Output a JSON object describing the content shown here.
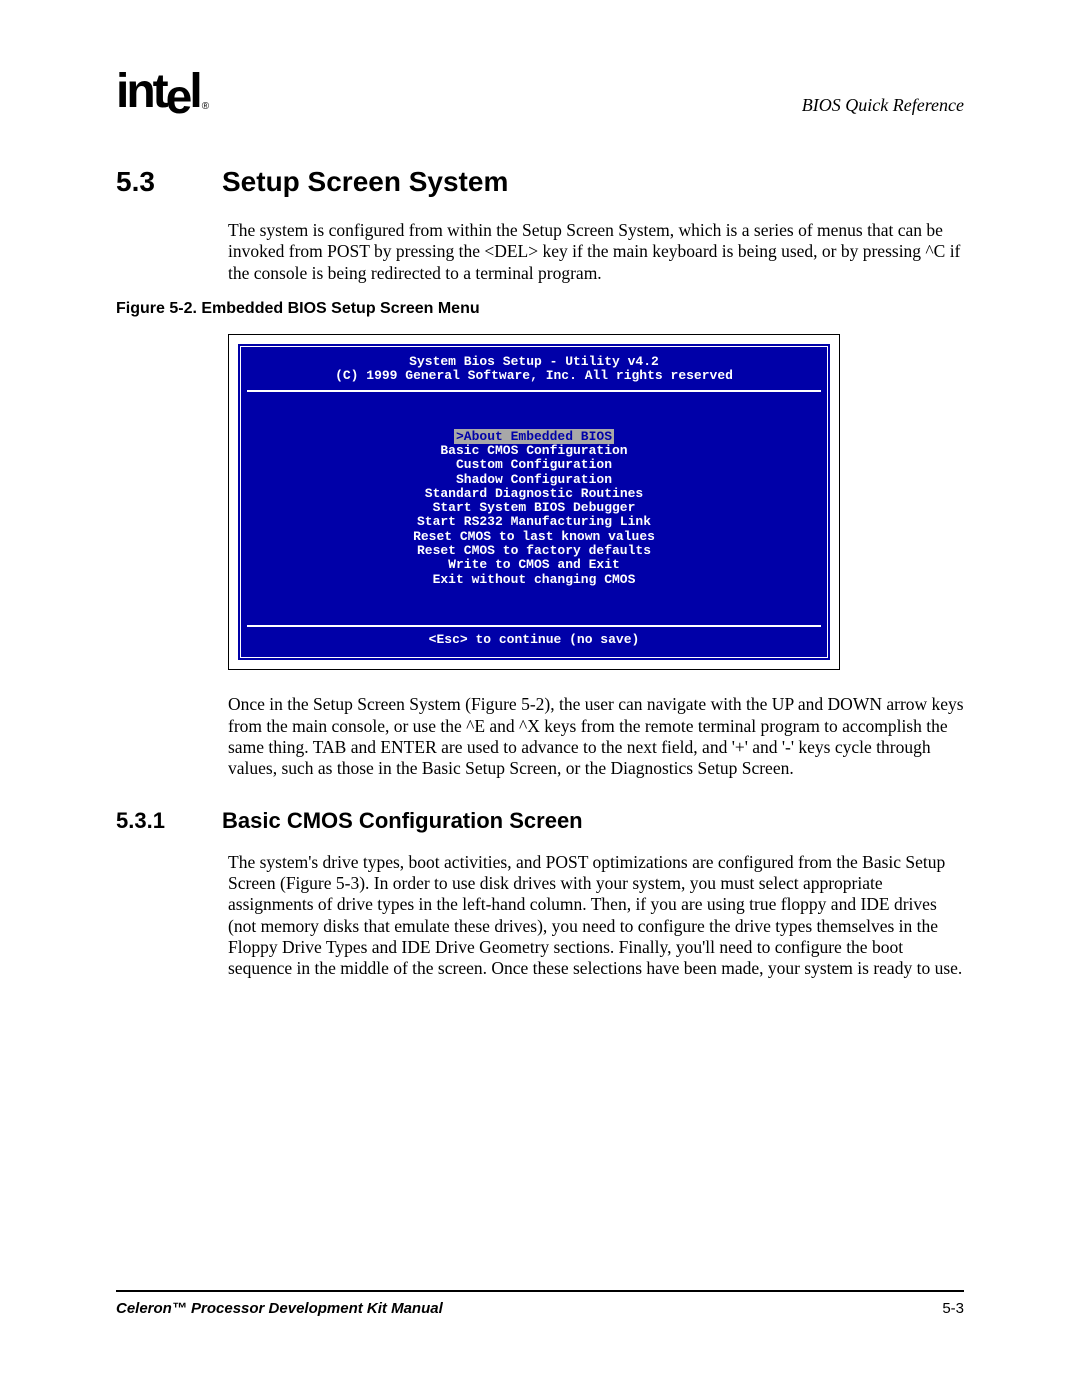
{
  "header": {
    "logo_text": "intel",
    "right_text": "BIOS Quick Reference"
  },
  "section": {
    "num": "5.3",
    "title": "Setup Screen System",
    "para": "The system is configured from within the Setup Screen System, which is a series of menus that can be invoked from POST by pressing the <DEL> key if the main keyboard is being used, or by pressing ^C if the console is being redirected to a terminal program."
  },
  "figure": {
    "caption": "Figure 5-2. Embedded BIOS Setup Screen Menu"
  },
  "bios": {
    "title1": "System Bios Setup - Utility v4.2",
    "title2": "(C) 1999 General Software, Inc. All rights reserved",
    "menu_selected": ">About Embedded BIOS ",
    "menu_items": [
      "Basic CMOS Configuration",
      "Custom Configuration",
      "Shadow Configuration",
      "Standard Diagnostic Routines",
      "Start System BIOS Debugger",
      "Start RS232 Manufacturing Link",
      "Reset CMOS to last known values",
      "Reset CMOS to factory defaults",
      "Write to CMOS and Exit",
      "Exit without changing CMOS"
    ],
    "footer": "<Esc> to continue (no save)",
    "colors": {
      "background": "#0000a8",
      "text": "#ffffff",
      "highlight_bg": "#a8a8a8",
      "highlight_fg": "#0000a8"
    }
  },
  "after_figure_para": "Once in the Setup Screen System (Figure 5-2), the user can navigate with the UP and DOWN arrow keys from the main console, or use the ^E and ^X keys from the remote terminal program to accomplish the same thing. TAB and ENTER are used to advance to the next field, and '+' and '-' keys cycle through values, such as those in the Basic Setup Screen, or the Diagnostics Setup Screen.",
  "subsection": {
    "num": "5.3.1",
    "title": "Basic CMOS Configuration Screen",
    "para": "The system's drive types, boot activities, and POST optimizations are configured from the Basic Setup Screen (Figure 5-3). In order to use disk drives with your system, you must select appropriate assignments of drive types in the left-hand column. Then, if you are using true floppy and IDE drives (not memory disks that emulate these drives), you need to configure the drive types themselves in the Floppy Drive Types and IDE Drive Geometry sections. Finally, you'll need to configure the boot sequence in the middle of the screen. Once these selections have been made, your system is ready to use."
  },
  "footer": {
    "left": "Celeron™ Processor Development Kit Manual",
    "right": "5-3"
  }
}
